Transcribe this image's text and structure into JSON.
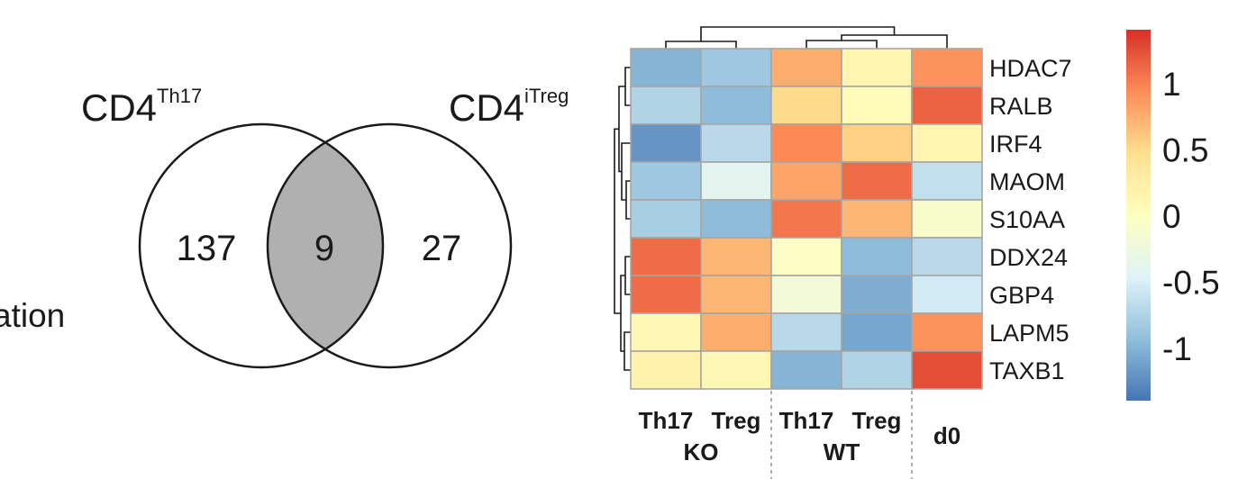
{
  "cropped_text": "ation",
  "venn": {
    "left_set": {
      "name": "CD4",
      "superscript": "Th17",
      "only_count": "137"
    },
    "right_set": {
      "name": "CD4",
      "superscript": "iTreg",
      "only_count": "27"
    },
    "intersection_count": "9",
    "intersection_color": "#b0b0b0"
  },
  "chart_data": [
    {
      "type": "venn",
      "sets": [
        {
          "name": "CD4 Th17",
          "unique": 137
        },
        {
          "name": "CD4 iTreg",
          "unique": 27
        }
      ],
      "intersection": 9
    },
    {
      "type": "heatmap",
      "rows": [
        "HDAC7",
        "RALB",
        "IRF4",
        "MAOM",
        "S10AA",
        "DDX24",
        "GBP4",
        "LAPM5",
        "TAXB1"
      ],
      "columns": [
        "Th17",
        "Treg",
        "Th17",
        "Treg",
        "d0"
      ],
      "column_groups": [
        {
          "label": "KO",
          "columns": [
            0,
            1
          ]
        },
        {
          "label": "WT",
          "columns": [
            2,
            3
          ]
        },
        {
          "label": "",
          "columns": [
            4
          ]
        }
      ],
      "values": [
        [
          -1.0,
          -0.85,
          0.75,
          0.15,
          0.9
        ],
        [
          -0.75,
          -0.95,
          0.5,
          0.05,
          1.15
        ],
        [
          -1.2,
          -0.7,
          0.95,
          0.55,
          0.15
        ],
        [
          -0.85,
          -0.4,
          0.8,
          1.1,
          -0.65
        ],
        [
          -0.8,
          -0.95,
          1.05,
          0.7,
          -0.1
        ],
        [
          1.1,
          0.7,
          -0.05,
          -0.95,
          -0.7
        ],
        [
          1.1,
          0.7,
          -0.2,
          -1.05,
          -0.55
        ],
        [
          0.1,
          0.75,
          -0.7,
          -1.1,
          0.9
        ],
        [
          0.2,
          0.1,
          -1.0,
          -0.75,
          1.25
        ]
      ],
      "colorbar": {
        "ticks": [
          1,
          0.5,
          0,
          -0.5,
          -1
        ],
        "tick_labels": [
          "1",
          "0.5",
          "0",
          "-0.5",
          "-1"
        ],
        "range": [
          -1.4,
          1.4
        ]
      },
      "colormap": [
        "#4575b4",
        "#91bfdb",
        "#e0f3f8",
        "#ffffbf",
        "#fee090",
        "#fc8d59",
        "#d73027"
      ],
      "row_dendrogram": true,
      "column_dendrogram": true,
      "grid_color": "#a6a6a6"
    }
  ]
}
